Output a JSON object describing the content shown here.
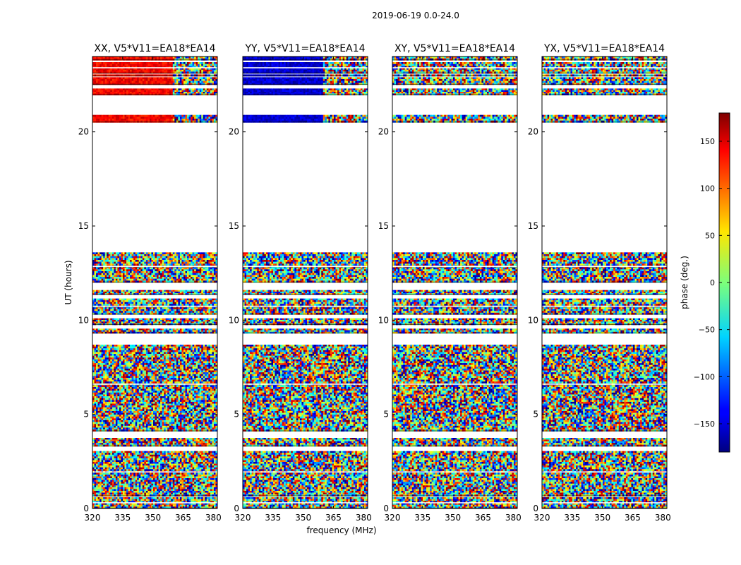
{
  "figure": {
    "suptitle": "2019-06-19 0.0-24.0"
  },
  "chart_data": {
    "type": "heatmap",
    "title": "2019-06-19 0.0-24.0",
    "xlabel": "frequency (MHz)",
    "ylabel": "UT (hours)",
    "xlim": [
      320,
      382
    ],
    "ylim": [
      0,
      24
    ],
    "xticks": [
      320,
      335,
      350,
      365,
      380
    ],
    "yticks": [
      0,
      5,
      10,
      15,
      20
    ],
    "panels": [
      {
        "title": "XX, V5*V11=EA18*EA14",
        "pol": "XX"
      },
      {
        "title": "YY, V5*V11=EA18*EA14",
        "pol": "YY"
      },
      {
        "title": "XY, V5*V11=EA18*EA14",
        "pol": "XY"
      },
      {
        "title": "YX, V5*V11=EA18*EA14",
        "pol": "YX"
      }
    ],
    "data_time_ranges_hours": [
      [
        0.0,
        0.6
      ],
      [
        0.65,
        3.05
      ],
      [
        3.3,
        3.75
      ],
      [
        4.1,
        8.7
      ],
      [
        9.3,
        9.55
      ],
      [
        9.75,
        10.1
      ],
      [
        10.3,
        11.15
      ],
      [
        11.35,
        11.6
      ],
      [
        12.0,
        13.6
      ],
      [
        20.5,
        20.9
      ],
      [
        21.95,
        22.3
      ],
      [
        22.5,
        22.9
      ],
      [
        22.95,
        23.05
      ],
      [
        23.1,
        23.7
      ],
      [
        23.8,
        24.0
      ]
    ],
    "colorbar": {
      "label": "phase (deg.)",
      "range": [
        -180,
        180
      ],
      "ticks": [
        150,
        100,
        50,
        0,
        -50,
        -100,
        -150
      ],
      "tick_labels": [
        "150",
        "100",
        "50",
        "0",
        "−50",
        "−100",
        "−150"
      ],
      "colormap": "jet"
    }
  }
}
